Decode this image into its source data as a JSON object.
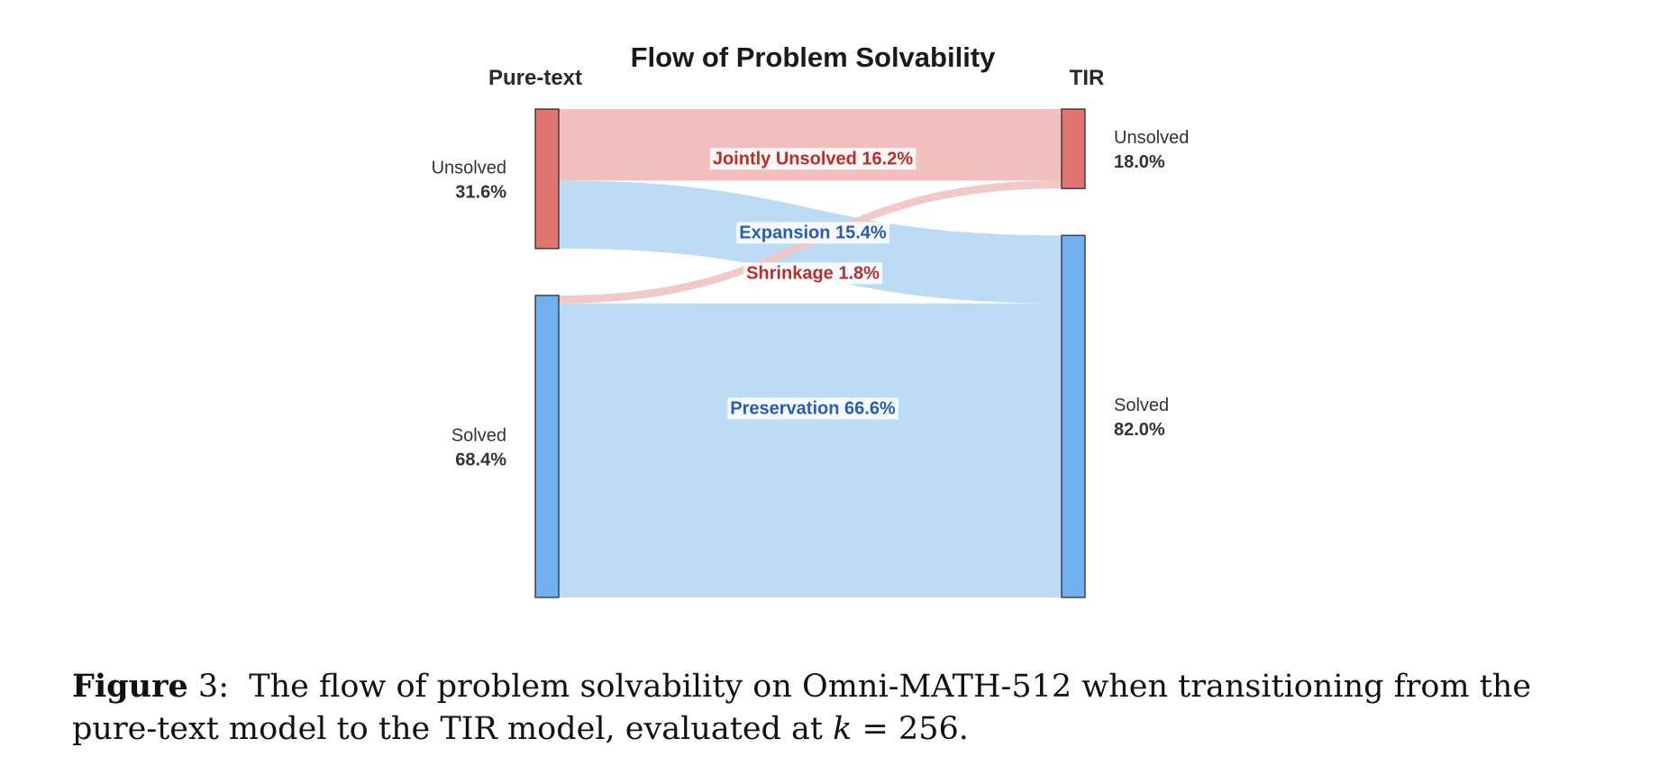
{
  "chart_data": {
    "type": "sankey",
    "title": "Flow of Problem Solvability",
    "left_column": "Pure-text",
    "right_column": "TIR",
    "left_nodes": [
      {
        "id": "pt_unsolved",
        "label": "Unsolved",
        "value": 31.6,
        "value_text": "31.6%",
        "color": "#e07470"
      },
      {
        "id": "pt_solved",
        "label": "Solved",
        "value": 68.4,
        "value_text": "68.4%",
        "color": "#72b0ef"
      }
    ],
    "right_nodes": [
      {
        "id": "tir_unsolved",
        "label": "Unsolved",
        "value": 18.0,
        "value_text": "18.0%",
        "color": "#e07470"
      },
      {
        "id": "tir_solved",
        "label": "Solved",
        "value": 82.0,
        "value_text": "82.0%",
        "color": "#72b0ef"
      }
    ],
    "flows": [
      {
        "id": "jointly_unsolved",
        "source": "pt_unsolved",
        "target": "tir_unsolved",
        "value": 16.2,
        "label": "Jointly Unsolved 16.2%",
        "fill": "#f0bcba",
        "text_color": "#b5302d"
      },
      {
        "id": "expansion",
        "source": "pt_unsolved",
        "target": "tir_solved",
        "value": 15.4,
        "label": "Expansion 15.4%",
        "fill": "#bad9f6",
        "text_color": "#2a5db0"
      },
      {
        "id": "shrinkage",
        "source": "pt_solved",
        "target": "tir_unsolved",
        "value": 1.8,
        "label": "Shrinkage 1.8%",
        "fill": "#f0c6c5",
        "text_color": "#b5302d"
      },
      {
        "id": "preservation",
        "source": "pt_solved",
        "target": "tir_solved",
        "value": 66.6,
        "label": "Preservation 66.6%",
        "fill": "#bad9f6",
        "text_color": "#2a5db0"
      }
    ]
  },
  "caption": {
    "label": "Figure",
    "number": "3:",
    "text_before": "The flow of problem solvability on Omni-MATH-512 when transitioning from the pure-text model to the TIR model, evaluated at",
    "math": "k",
    "text_after": "= 256."
  }
}
